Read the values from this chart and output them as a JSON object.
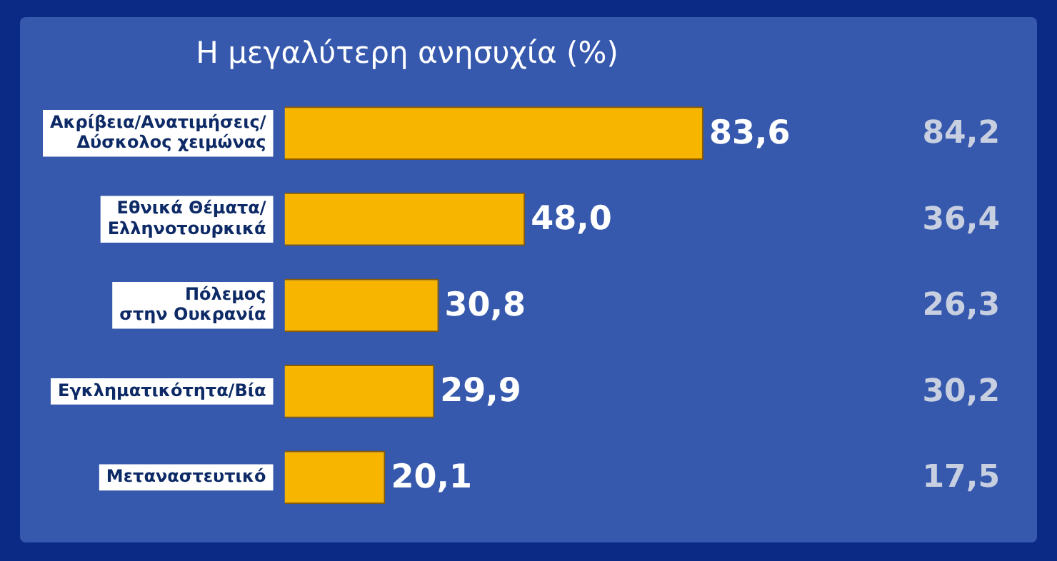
{
  "chart_data": {
    "type": "bar",
    "orientation": "horizontal",
    "title": "Η μεγαλύτερη ανησυχία (%)",
    "categories": [
      "Ακρίβεια/Ανατιμήσεις/\nΔύσκολος χειμώνας",
      "Εθνικά Θέματα/\nΕλληνοτουρκικά",
      "Πόλεμος\nστην Ουκρανία",
      "Εγκληματικότητα/Βία",
      "Μεταναστευτικό"
    ],
    "values": [
      83.6,
      48.0,
      30.8,
      29.9,
      20.1
    ],
    "value_labels": [
      "83,6",
      "48,0",
      "30,8",
      "29,9",
      "20,1"
    ],
    "color": "#f7b500",
    "tick_labels": "y",
    "legend": false,
    "annotations": [
      "84,2",
      "36,4",
      "26,3",
      "30,2",
      "17,5"
    ]
  }
}
